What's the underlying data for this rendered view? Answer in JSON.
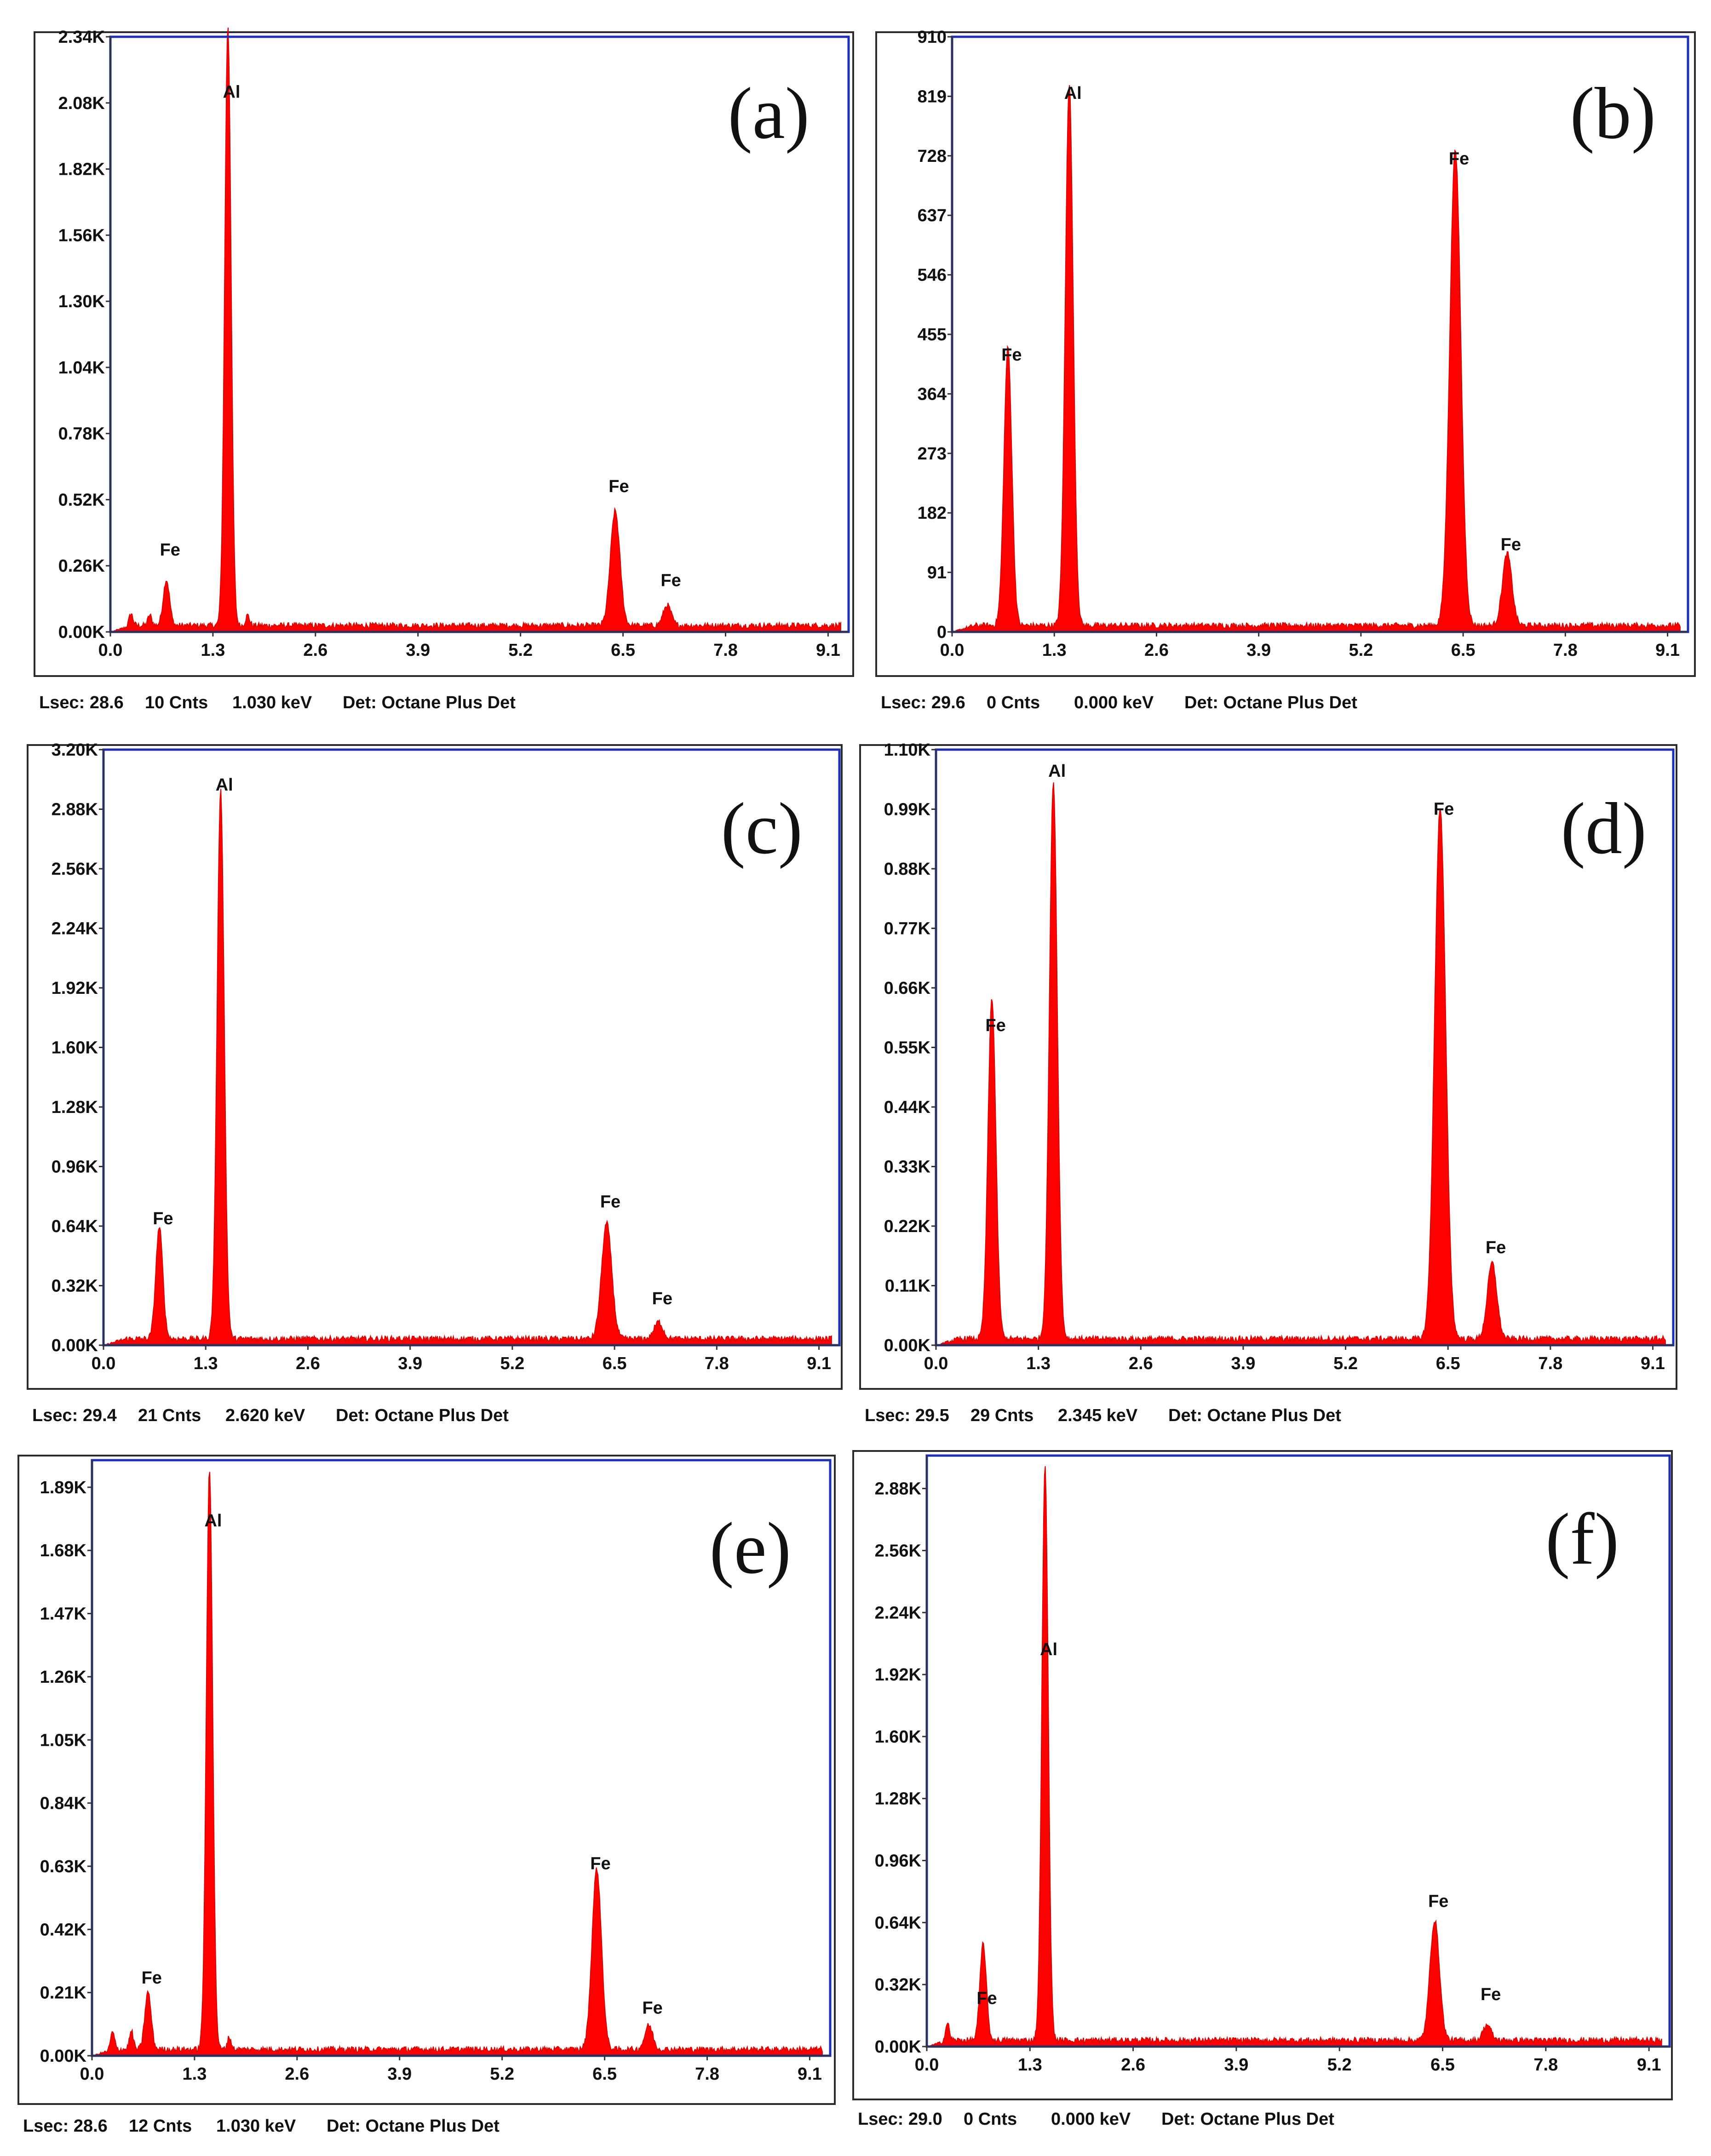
{
  "chart_data": [
    {
      "type": "area",
      "panel_label": "(a)",
      "x_ticks": [
        "0.0",
        "1.3",
        "2.6",
        "3.9",
        "5.2",
        "6.5",
        "7.8",
        "9.1"
      ],
      "y_ticks": [
        "0.00K",
        "0.26K",
        "0.52K",
        "0.78K",
        "1.04K",
        "1.30K",
        "1.56K",
        "1.82K",
        "2.08K",
        "2.34K"
      ],
      "xlim": [
        0,
        9.36
      ],
      "ylim": [
        0,
        2.34
      ],
      "series": [
        {
          "x": [
            0.26,
            0.5,
            0.71,
            1.49,
            1.74,
            6.4,
            7.06
          ],
          "y": [
            0.05,
            0.04,
            0.18,
            2.36,
            0.04,
            0.45,
            0.08
          ],
          "widths": [
            0.05,
            0.05,
            0.08,
            0.08,
            0.05,
            0.12,
            0.1
          ]
        }
      ],
      "peak_labels": [
        {
          "text": "Fe",
          "x": 0.71,
          "y": 0.3
        },
        {
          "text": "Al",
          "x": 1.49,
          "y": 2.1
        },
        {
          "text": "Fe",
          "x": 6.4,
          "y": 0.55
        },
        {
          "text": "Fe",
          "x": 7.06,
          "y": 0.18
        }
      ],
      "footer": {
        "lsec": "Lsec: 28.6",
        "cnts": "10 Cnts",
        "kev": "1.030 keV",
        "det": "Det: Octane Plus Det"
      }
    },
    {
      "type": "area",
      "panel_label": "(b)",
      "x_ticks": [
        "0.0",
        "1.3",
        "2.6",
        "3.9",
        "5.2",
        "6.5",
        "7.8",
        "9.1"
      ],
      "y_ticks": [
        "0",
        "91",
        "182",
        "273",
        "364",
        "455",
        "546",
        "637",
        "728",
        "819",
        "910"
      ],
      "xlim": [
        0,
        9.36
      ],
      "ylim": [
        0,
        910
      ],
      "series": [
        {
          "x": [
            0.71,
            1.49,
            6.4,
            7.06
          ],
          "y": [
            425,
            830,
            730,
            110
          ],
          "widths": [
            0.1,
            0.1,
            0.14,
            0.12
          ]
        }
      ],
      "peak_labels": [
        {
          "text": "Fe",
          "x": 0.71,
          "y": 415
        },
        {
          "text": "Al",
          "x": 1.49,
          "y": 815
        },
        {
          "text": "Fe",
          "x": 6.4,
          "y": 715
        },
        {
          "text": "Fe",
          "x": 7.06,
          "y": 125
        }
      ],
      "footer": {
        "lsec": "Lsec: 29.6",
        "cnts": "0 Cnts",
        "kev": "0.000 keV",
        "det": "Det: Octane Plus Det"
      }
    },
    {
      "type": "area",
      "panel_label": "(c)",
      "x_ticks": [
        "0.0",
        "1.3",
        "2.6",
        "3.9",
        "5.2",
        "6.5",
        "7.8",
        "9.1"
      ],
      "y_ticks": [
        "0.00K",
        "0.32K",
        "0.64K",
        "0.96K",
        "1.28K",
        "1.60K",
        "1.92K",
        "2.24K",
        "2.56K",
        "2.88K",
        "3.20K"
      ],
      "xlim": [
        0,
        9.36
      ],
      "ylim": [
        0,
        3.2
      ],
      "series": [
        {
          "x": [
            0.71,
            1.49,
            6.4,
            7.06
          ],
          "y": [
            0.6,
            2.95,
            0.62,
            0.09
          ],
          "widths": [
            0.09,
            0.09,
            0.13,
            0.11
          ]
        }
      ],
      "peak_labels": [
        {
          "text": "Fe",
          "x": 0.71,
          "y": 0.65
        },
        {
          "text": "Al",
          "x": 1.49,
          "y": 2.98
        },
        {
          "text": "Fe",
          "x": 6.4,
          "y": 0.74
        },
        {
          "text": "Fe",
          "x": 7.06,
          "y": 0.22
        }
      ],
      "footer": {
        "lsec": "Lsec: 29.4",
        "cnts": "21 Cnts",
        "kev": "2.620 keV",
        "det": "Det: Octane Plus Det"
      }
    },
    {
      "type": "area",
      "panel_label": "(d)",
      "x_ticks": [
        "0.0",
        "1.3",
        "2.6",
        "3.9",
        "5.2",
        "6.5",
        "7.8",
        "9.1"
      ],
      "y_ticks": [
        "0.00K",
        "0.11K",
        "0.22K",
        "0.33K",
        "0.44K",
        "0.55K",
        "0.66K",
        "0.77K",
        "0.88K",
        "0.99K",
        "1.10K"
      ],
      "xlim": [
        0,
        9.36
      ],
      "ylim": [
        0,
        1.1
      ],
      "series": [
        {
          "x": [
            0.71,
            1.49,
            6.4,
            7.06
          ],
          "y": [
            0.63,
            1.03,
            0.98,
            0.14
          ],
          "widths": [
            0.1,
            0.1,
            0.14,
            0.12
          ]
        }
      ],
      "peak_labels": [
        {
          "text": "Fe",
          "x": 0.71,
          "y": 0.58
        },
        {
          "text": "Al",
          "x": 1.49,
          "y": 1.05
        },
        {
          "text": "Fe",
          "x": 6.4,
          "y": 0.98
        },
        {
          "text": "Fe",
          "x": 7.06,
          "y": 0.17
        }
      ],
      "footer": {
        "lsec": "Lsec: 29.5",
        "cnts": "29 Cnts",
        "kev": "2.345 keV",
        "det": "Det: Octane Plus Det"
      }
    },
    {
      "type": "area",
      "panel_label": "(e)",
      "x_ticks": [
        "0.0",
        "1.3",
        "2.6",
        "3.9",
        "5.2",
        "6.5",
        "7.8",
        "9.1"
      ],
      "y_ticks": [
        "0.00K",
        "0.21K",
        "0.42K",
        "0.63K",
        "0.84K",
        "1.05K",
        "1.26K",
        "1.47K",
        "1.68K",
        "1.89K"
      ],
      "xlim": [
        0,
        9.36
      ],
      "ylim": [
        0,
        1.98
      ],
      "series": [
        {
          "x": [
            0.26,
            0.5,
            0.71,
            1.49,
            1.74,
            6.4,
            7.06
          ],
          "y": [
            0.06,
            0.06,
            0.19,
            1.93,
            0.04,
            0.6,
            0.08
          ],
          "widths": [
            0.05,
            0.05,
            0.08,
            0.08,
            0.05,
            0.12,
            0.1
          ]
        }
      ],
      "peak_labels": [
        {
          "text": "Fe",
          "x": 0.71,
          "y": 0.24
        },
        {
          "text": "Al",
          "x": 1.49,
          "y": 1.76
        },
        {
          "text": "Fe",
          "x": 6.4,
          "y": 0.62
        },
        {
          "text": "Fe",
          "x": 7.06,
          "y": 0.14
        }
      ],
      "footer": {
        "lsec": "Lsec: 28.6",
        "cnts": "12 Cnts",
        "kev": "1.030 keV",
        "det": "Det: Octane Plus Det"
      }
    },
    {
      "type": "area",
      "panel_label": "(f)",
      "x_ticks": [
        "0.0",
        "1.3",
        "2.6",
        "3.9",
        "5.2",
        "6.5",
        "7.8",
        "9.1"
      ],
      "y_ticks": [
        "0.00K",
        "0.32K",
        "0.64K",
        "0.96K",
        "1.28K",
        "1.60K",
        "1.92K",
        "2.24K",
        "2.56K",
        "2.88K"
      ],
      "xlim": [
        0,
        9.36
      ],
      "ylim": [
        0,
        3.05
      ],
      "series": [
        {
          "x": [
            0.26,
            0.71,
            1.49,
            6.4,
            7.06
          ],
          "y": [
            0.09,
            0.5,
            2.96,
            0.62,
            0.08
          ],
          "widths": [
            0.05,
            0.08,
            0.08,
            0.12,
            0.1
          ]
        }
      ],
      "peak_labels": [
        {
          "text": "Fe",
          "x": 0.71,
          "y": 0.22
        },
        {
          "text": "Al",
          "x": 1.49,
          "y": 2.02
        },
        {
          "text": "Fe",
          "x": 6.4,
          "y": 0.72
        },
        {
          "text": "Fe",
          "x": 7.06,
          "y": 0.24
        }
      ],
      "footer": {
        "lsec": "Lsec: 29.0",
        "cnts": "0 Cnts",
        "kev": "0.000 keV",
        "det": "Det: Octane Plus Det"
      }
    }
  ],
  "colors": {
    "spectrum": "#ff0000",
    "plot_frame": "#1f2fb5"
  }
}
